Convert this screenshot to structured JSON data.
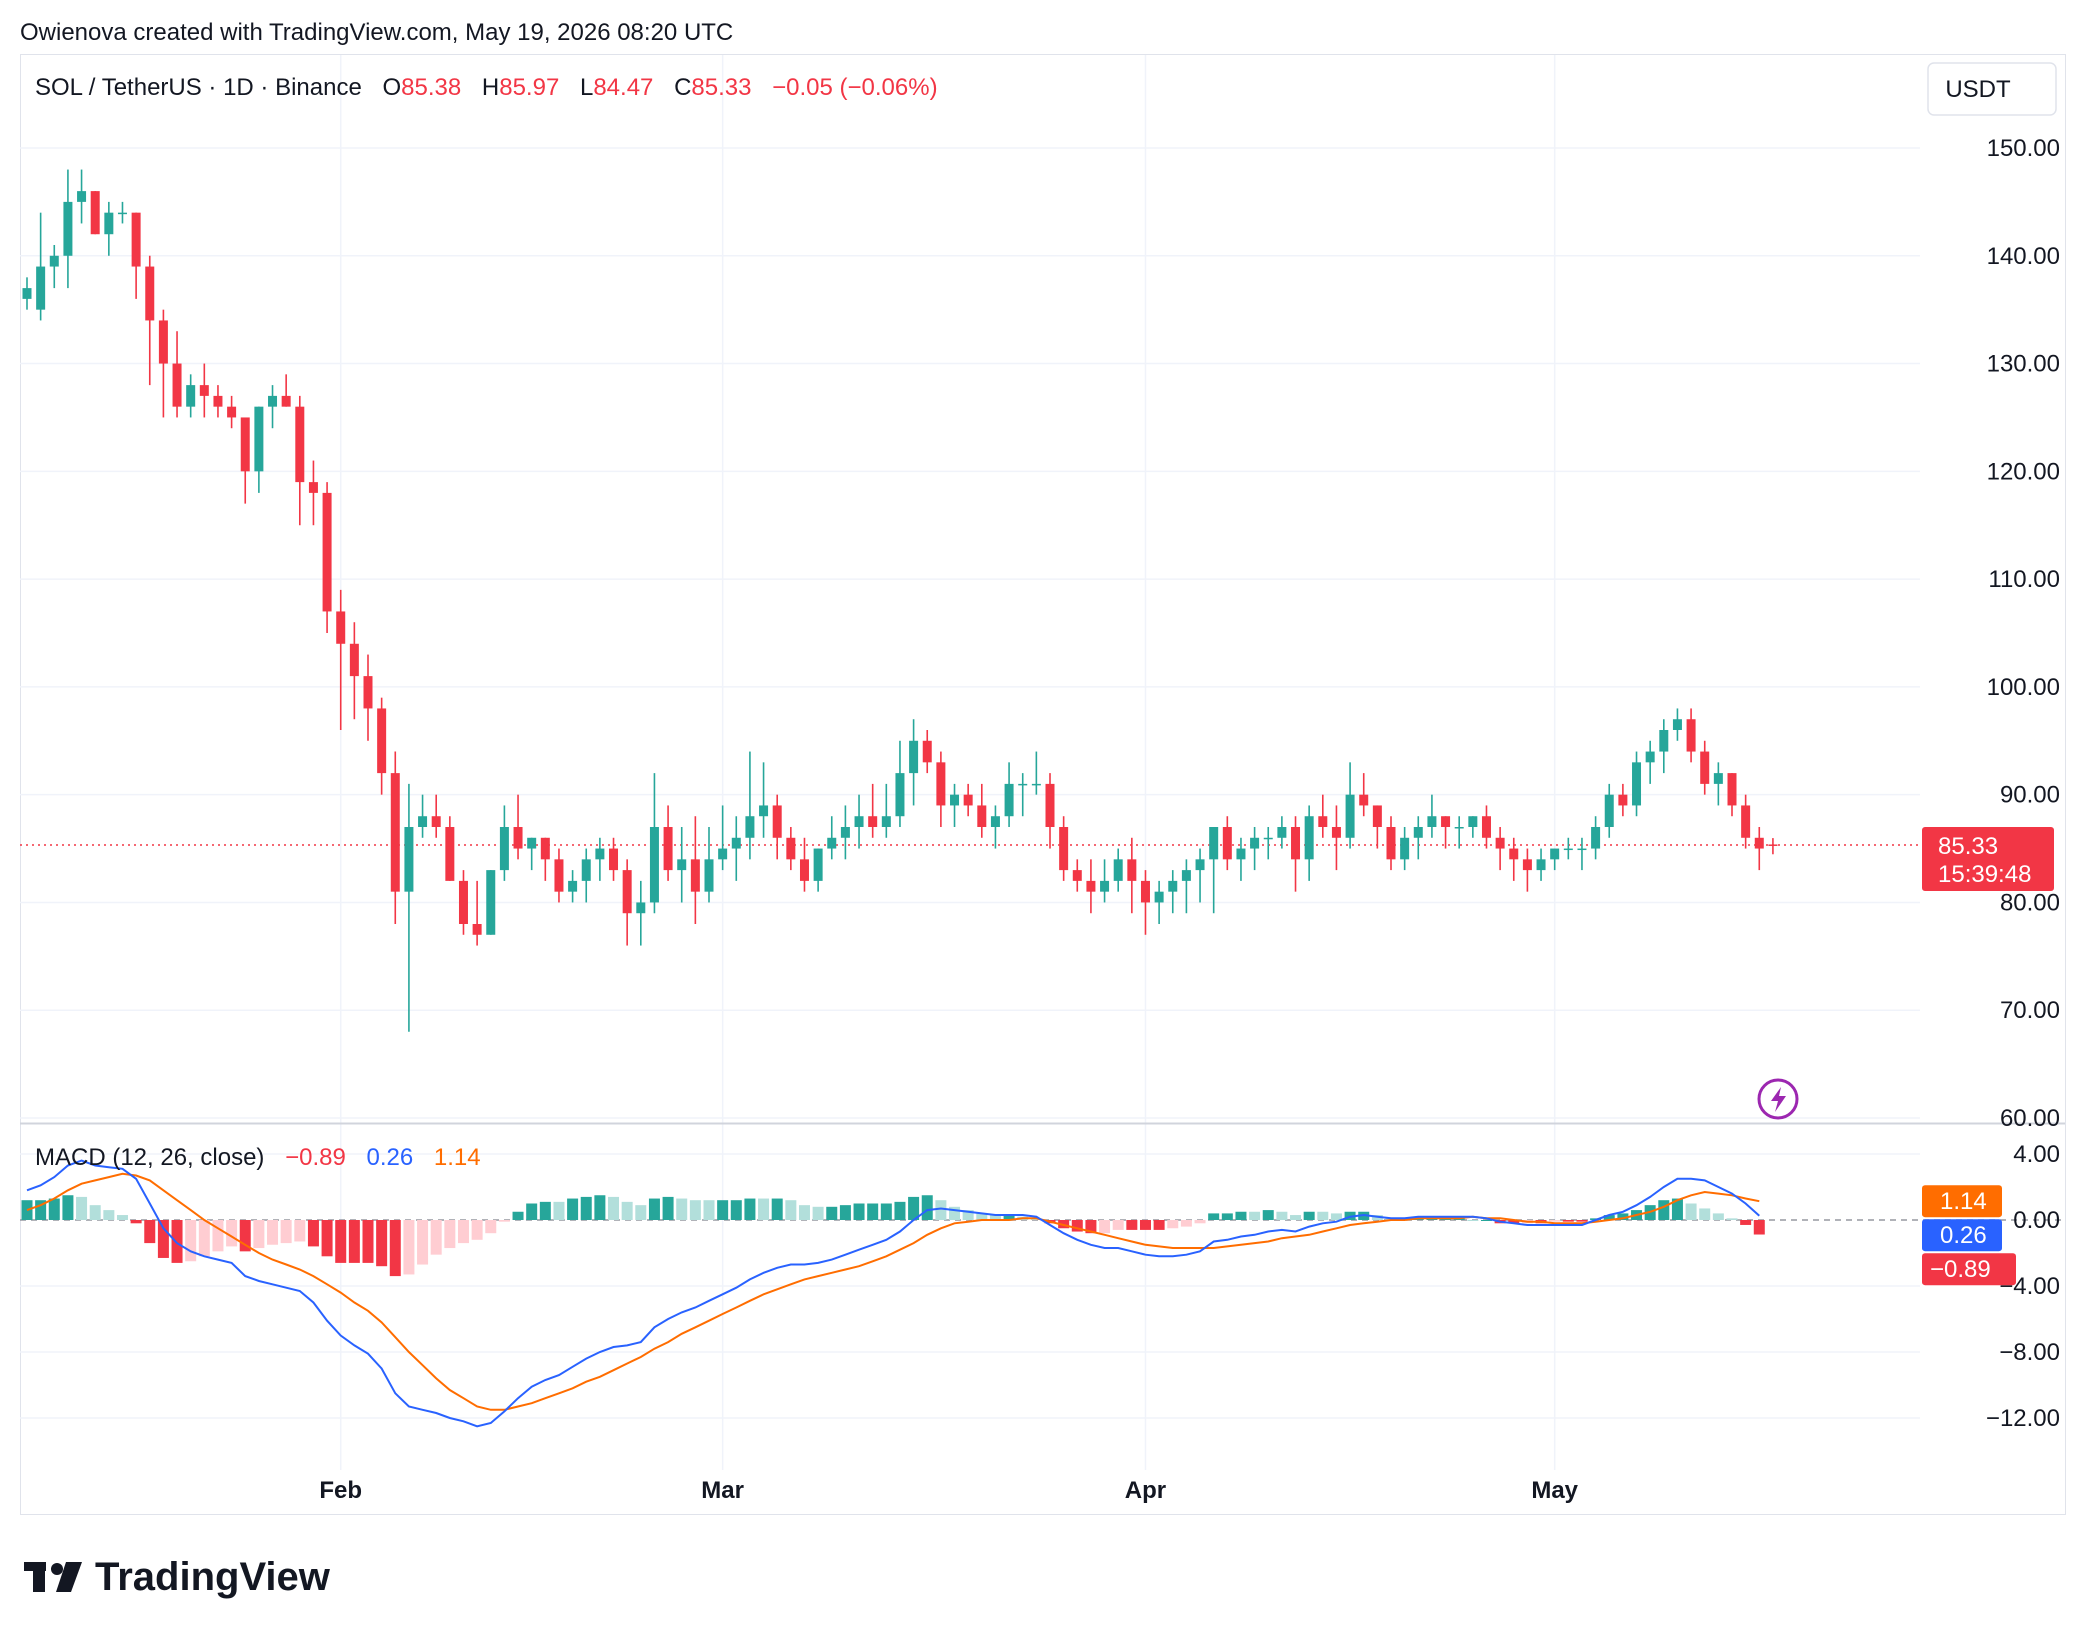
{
  "header": {
    "attribution": "Owienova created with TradingView.com, May 19, 2026 08:20 UTC"
  },
  "legend": {
    "symbol": "SOL / TetherUS · 1D · Binance",
    "o_label": "O",
    "o_value": "85.38",
    "h_label": "H",
    "h_value": "85.97",
    "l_label": "L",
    "l_value": "84.47",
    "c_label": "C",
    "c_value": "85.33",
    "change": "−0.05 (−0.06%)"
  },
  "currency": "USDT",
  "price_tag": {
    "value": "85.33",
    "countdown": "15:39:48"
  },
  "macd_legend": {
    "title": "MACD (12, 26, close)",
    "hist": "−0.89",
    "macd": "0.26",
    "signal": "1.14"
  },
  "macd_tags": {
    "signal": "1.14",
    "macd": "0.26",
    "hist": "−0.89"
  },
  "logo": {
    "text": "TradingView"
  },
  "colors": {
    "up": "#26a69a",
    "down": "#f23645",
    "up_light": "#b2dfdb",
    "down_light": "#ffcdd2",
    "macd_line": "#2962ff",
    "signal_line": "#ff6d00",
    "grid": "#f0f3fa",
    "text": "#131722",
    "lightning": "#9c27b0"
  },
  "chart_data": [
    {
      "type": "candlestick",
      "title": "SOL / TetherUS · 1D · Binance",
      "ylim": [
        60,
        150
      ],
      "y_ticks": [
        "150.00",
        "140.00",
        "130.00",
        "120.00",
        "110.00",
        "100.00",
        "90.00",
        "80.00",
        "70.00",
        "60.00"
      ],
      "x_labels": [
        {
          "label": "Feb",
          "index": 23
        },
        {
          "label": "Mar",
          "index": 51
        },
        {
          "label": "Apr",
          "index": 82
        },
        {
          "label": "May",
          "index": 112
        }
      ],
      "last_price_line": 85.33,
      "ohlc": [
        [
          136,
          138,
          135,
          137
        ],
        [
          135,
          144,
          134,
          139
        ],
        [
          139,
          141,
          137,
          140
        ],
        [
          140,
          148,
          137,
          145
        ],
        [
          145,
          148,
          143,
          146
        ],
        [
          146,
          146,
          142,
          142
        ],
        [
          142,
          145,
          140,
          144
        ],
        [
          144,
          145,
          143,
          144
        ],
        [
          144,
          144,
          136,
          139
        ],
        [
          139,
          140,
          128,
          134
        ],
        [
          134,
          135,
          125,
          130
        ],
        [
          130,
          133,
          125,
          126
        ],
        [
          126,
          129,
          125,
          128
        ],
        [
          128,
          130,
          125,
          127
        ],
        [
          127,
          128,
          125,
          126
        ],
        [
          126,
          127,
          124,
          125
        ],
        [
          125,
          125,
          117,
          120
        ],
        [
          120,
          126,
          118,
          126
        ],
        [
          126,
          128,
          124,
          127
        ],
        [
          127,
          129,
          126,
          126
        ],
        [
          126,
          127,
          115,
          119
        ],
        [
          119,
          121,
          115,
          118
        ],
        [
          118,
          119,
          105,
          107
        ],
        [
          107,
          109,
          96,
          104
        ],
        [
          104,
          106,
          97,
          101
        ],
        [
          101,
          103,
          95,
          98
        ],
        [
          98,
          99,
          90,
          92
        ],
        [
          92,
          94,
          78,
          81
        ],
        [
          81,
          91,
          68,
          87
        ],
        [
          87,
          90,
          86,
          88
        ],
        [
          88,
          90,
          86,
          87
        ],
        [
          87,
          88,
          82,
          82
        ],
        [
          82,
          83,
          77,
          78
        ],
        [
          78,
          82,
          76,
          77
        ],
        [
          77,
          83,
          77,
          83
        ],
        [
          83,
          89,
          82,
          87
        ],
        [
          87,
          90,
          84,
          85
        ],
        [
          85,
          86,
          83,
          86
        ],
        [
          86,
          86,
          82,
          84
        ],
        [
          84,
          85,
          80,
          81
        ],
        [
          81,
          83,
          80,
          82
        ],
        [
          82,
          85,
          80,
          84
        ],
        [
          84,
          86,
          82,
          85
        ],
        [
          85,
          86,
          82,
          83
        ],
        [
          83,
          84,
          76,
          79
        ],
        [
          79,
          82,
          76,
          80
        ],
        [
          80,
          92,
          79,
          87
        ],
        [
          87,
          89,
          82,
          83
        ],
        [
          83,
          87,
          80,
          84
        ],
        [
          84,
          88,
          78,
          81
        ],
        [
          81,
          87,
          80,
          84
        ],
        [
          84,
          89,
          83,
          85
        ],
        [
          85,
          88,
          82,
          86
        ],
        [
          86,
          94,
          84,
          88
        ],
        [
          88,
          93,
          86,
          89
        ],
        [
          89,
          90,
          84,
          86
        ],
        [
          86,
          87,
          83,
          84
        ],
        [
          84,
          86,
          81,
          82
        ],
        [
          82,
          85,
          81,
          85
        ],
        [
          85,
          88,
          84,
          86
        ],
        [
          86,
          89,
          84,
          87
        ],
        [
          87,
          90,
          85,
          88
        ],
        [
          88,
          91,
          86,
          87
        ],
        [
          87,
          91,
          86,
          88
        ],
        [
          88,
          95,
          87,
          92
        ],
        [
          92,
          97,
          89,
          95
        ],
        [
          95,
          96,
          92,
          93
        ],
        [
          93,
          94,
          87,
          89
        ],
        [
          89,
          91,
          87,
          90
        ],
        [
          90,
          91,
          88,
          89
        ],
        [
          89,
          91,
          86,
          87
        ],
        [
          87,
          89,
          85,
          88
        ],
        [
          88,
          93,
          87,
          91
        ],
        [
          91,
          92,
          88,
          91
        ],
        [
          91,
          94,
          90,
          91
        ],
        [
          91,
          92,
          85,
          87
        ],
        [
          87,
          88,
          82,
          83
        ],
        [
          83,
          84,
          81,
          82
        ],
        [
          82,
          84,
          79,
          81
        ],
        [
          81,
          84,
          80,
          82
        ],
        [
          82,
          85,
          81,
          84
        ],
        [
          84,
          86,
          79,
          82
        ],
        [
          82,
          83,
          77,
          80
        ],
        [
          80,
          82,
          78,
          81
        ],
        [
          81,
          83,
          79,
          82
        ],
        [
          82,
          84,
          79,
          83
        ],
        [
          83,
          85,
          80,
          84
        ],
        [
          84,
          87,
          79,
          87
        ],
        [
          87,
          88,
          83,
          84
        ],
        [
          84,
          86,
          82,
          85
        ],
        [
          85,
          87,
          83,
          86
        ],
        [
          86,
          87,
          84,
          86
        ],
        [
          86,
          88,
          85,
          87
        ],
        [
          87,
          88,
          81,
          84
        ],
        [
          84,
          89,
          82,
          88
        ],
        [
          88,
          90,
          86,
          87
        ],
        [
          87,
          89,
          83,
          86
        ],
        [
          86,
          93,
          85,
          90
        ],
        [
          90,
          92,
          88,
          89
        ],
        [
          89,
          89,
          85,
          87
        ],
        [
          87,
          88,
          83,
          84
        ],
        [
          84,
          87,
          83,
          86
        ],
        [
          86,
          88,
          84,
          87
        ],
        [
          87,
          90,
          86,
          88
        ],
        [
          88,
          88,
          85,
          87
        ],
        [
          87,
          88,
          85,
          87
        ],
        [
          87,
          88,
          86,
          88
        ],
        [
          88,
          89,
          85,
          86
        ],
        [
          86,
          87,
          83,
          85
        ],
        [
          85,
          86,
          82,
          84
        ],
        [
          84,
          85,
          81,
          83
        ],
        [
          83,
          85,
          82,
          84
        ],
        [
          84,
          85,
          83,
          85
        ],
        [
          85,
          86,
          84,
          85
        ],
        [
          85,
          86,
          83,
          85
        ],
        [
          85,
          88,
          84,
          87
        ],
        [
          87,
          91,
          86,
          90
        ],
        [
          90,
          91,
          88,
          89
        ],
        [
          89,
          94,
          88,
          93
        ],
        [
          93,
          95,
          91,
          94
        ],
        [
          94,
          97,
          92,
          96
        ],
        [
          96,
          98,
          95,
          97
        ],
        [
          97,
          98,
          93,
          94
        ],
        [
          94,
          95,
          90,
          91
        ],
        [
          91,
          93,
          89,
          92
        ],
        [
          92,
          92,
          88,
          89
        ],
        [
          89,
          90,
          85,
          86
        ],
        [
          86,
          87,
          83,
          85
        ],
        [
          85.38,
          85.97,
          84.47,
          85.33
        ]
      ]
    },
    {
      "type": "macd",
      "title": "MACD (12, 26, close)",
      "ylim": [
        -16,
        4
      ],
      "y_ticks": [
        "4.00",
        "0.00",
        "−4.00",
        "−8.00",
        "−12.00"
      ],
      "macd": [
        1.8,
        2.1,
        2.6,
        3.3,
        3.6,
        3.3,
        3.2,
        3.1,
        2.5,
        1.0,
        -0.5,
        -1.4,
        -1.9,
        -2.2,
        -2.4,
        -2.6,
        -3.4,
        -3.7,
        -3.9,
        -4.1,
        -4.3,
        -5.0,
        -6.1,
        -7.0,
        -7.6,
        -8.1,
        -9.0,
        -10.5,
        -11.3,
        -11.5,
        -11.7,
        -12.0,
        -12.2,
        -12.5,
        -12.3,
        -11.6,
        -10.8,
        -10.1,
        -9.7,
        -9.4,
        -8.9,
        -8.4,
        -8.0,
        -7.7,
        -7.6,
        -7.4,
        -6.5,
        -6.0,
        -5.6,
        -5.3,
        -4.9,
        -4.5,
        -4.1,
        -3.6,
        -3.2,
        -2.9,
        -2.7,
        -2.7,
        -2.6,
        -2.4,
        -2.1,
        -1.8,
        -1.5,
        -1.2,
        -0.7,
        0.0,
        0.6,
        0.7,
        0.6,
        0.5,
        0.4,
        0.3,
        0.3,
        0.3,
        0.2,
        -0.3,
        -0.8,
        -1.2,
        -1.5,
        -1.7,
        -1.7,
        -1.9,
        -2.1,
        -2.2,
        -2.2,
        -2.1,
        -1.9,
        -1.3,
        -1.2,
        -1.0,
        -0.9,
        -0.7,
        -0.6,
        -0.7,
        -0.4,
        -0.2,
        -0.1,
        0.2,
        0.3,
        0.2,
        0.1,
        0.1,
        0.2,
        0.2,
        0.2,
        0.2,
        0.2,
        0.1,
        -0.1,
        -0.2,
        -0.3,
        -0.3,
        -0.3,
        -0.3,
        -0.3,
        0.0,
        0.3,
        0.5,
        0.9,
        1.4,
        2.0,
        2.5,
        2.5,
        2.4,
        2.0,
        1.6,
        1.0,
        0.26
      ],
      "signal": [
        0.6,
        0.9,
        1.3,
        1.8,
        2.2,
        2.4,
        2.6,
        2.8,
        2.7,
        2.4,
        1.8,
        1.2,
        0.6,
        0.0,
        -0.5,
        -1.0,
        -1.5,
        -2.0,
        -2.4,
        -2.7,
        -3.0,
        -3.4,
        -3.9,
        -4.4,
        -5.0,
        -5.5,
        -6.2,
        -7.1,
        -8.0,
        -8.8,
        -9.6,
        -10.3,
        -10.8,
        -11.3,
        -11.5,
        -11.5,
        -11.3,
        -11.1,
        -10.8,
        -10.5,
        -10.2,
        -9.8,
        -9.5,
        -9.1,
        -8.7,
        -8.3,
        -7.8,
        -7.4,
        -6.9,
        -6.5,
        -6.1,
        -5.7,
        -5.3,
        -4.9,
        -4.5,
        -4.2,
        -3.9,
        -3.6,
        -3.4,
        -3.2,
        -3.0,
        -2.8,
        -2.5,
        -2.2,
        -1.8,
        -1.4,
        -0.9,
        -0.5,
        -0.2,
        -0.1,
        0.0,
        0.0,
        0.0,
        0.1,
        0.1,
        -0.1,
        -0.3,
        -0.5,
        -0.7,
        -0.9,
        -1.1,
        -1.3,
        -1.5,
        -1.6,
        -1.7,
        -1.7,
        -1.7,
        -1.7,
        -1.6,
        -1.5,
        -1.4,
        -1.3,
        -1.1,
        -1.0,
        -0.9,
        -0.7,
        -0.5,
        -0.3,
        -0.2,
        -0.1,
        0.0,
        0.0,
        0.1,
        0.1,
        0.1,
        0.1,
        0.2,
        0.1,
        0.1,
        0.0,
        -0.1,
        -0.1,
        -0.2,
        -0.2,
        -0.2,
        -0.1,
        0.0,
        0.1,
        0.3,
        0.5,
        0.8,
        1.2,
        1.5,
        1.7,
        1.6,
        1.5,
        1.3,
        1.14
      ]
    }
  ]
}
